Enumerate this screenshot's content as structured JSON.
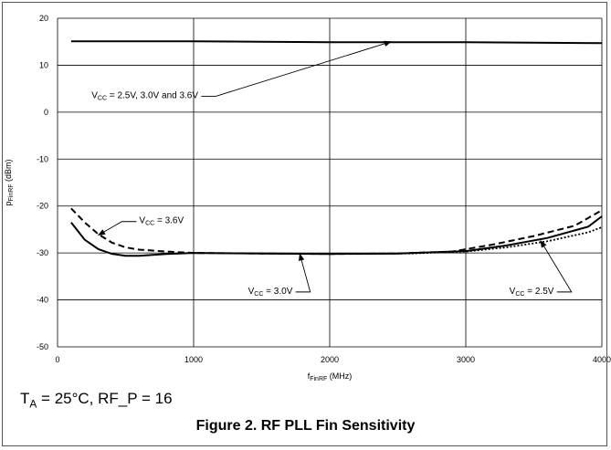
{
  "chart_data": {
    "type": "line",
    "xlabel": {
      "main": "f",
      "sub": "FinRF",
      "unit": " (MHz)"
    },
    "ylabel": {
      "main": "p",
      "sub": "FinRF",
      "unit": " (dBm)"
    },
    "xlim": [
      0,
      4000
    ],
    "ylim": [
      -50,
      20
    ],
    "xticks": [
      0,
      1000,
      2000,
      3000,
      4000
    ],
    "yticks": [
      20,
      10,
      0,
      -10,
      -20,
      -30,
      -40,
      -50
    ],
    "grid": true,
    "legend": "none",
    "series": [
      {
        "style": "solid",
        "values": [
          [
            100,
            15.1
          ],
          [
            500,
            15.1
          ],
          [
            1000,
            15.1
          ],
          [
            1500,
            15.0
          ],
          [
            2000,
            14.9
          ],
          [
            2500,
            14.9
          ],
          [
            3000,
            14.9
          ],
          [
            3500,
            14.8
          ],
          [
            4000,
            14.7
          ]
        ]
      },
      {
        "style": "dashed",
        "values": [
          [
            100,
            -20.5
          ],
          [
            200,
            -23.5
          ],
          [
            300,
            -26.0
          ],
          [
            400,
            -27.8
          ],
          [
            500,
            -28.8
          ],
          [
            600,
            -29.3
          ],
          [
            800,
            -29.7
          ],
          [
            1000,
            -30.0
          ],
          [
            1500,
            -30.1
          ],
          [
            2000,
            -30.2
          ],
          [
            2500,
            -30.1
          ],
          [
            2900,
            -29.7
          ],
          [
            3200,
            -28.2
          ],
          [
            3500,
            -26.4
          ],
          [
            3800,
            -24.2
          ],
          [
            4000,
            -20.9
          ]
        ]
      },
      {
        "style": "solid",
        "values": [
          [
            100,
            -23.5
          ],
          [
            200,
            -27.2
          ],
          [
            300,
            -29.2
          ],
          [
            400,
            -30.2
          ],
          [
            500,
            -30.6
          ],
          [
            600,
            -30.6
          ],
          [
            800,
            -30.2
          ],
          [
            1000,
            -30.0
          ],
          [
            1500,
            -30.1
          ],
          [
            2000,
            -30.2
          ],
          [
            2500,
            -30.1
          ],
          [
            3000,
            -29.6
          ],
          [
            3300,
            -28.4
          ],
          [
            3600,
            -26.8
          ],
          [
            3900,
            -24.4
          ],
          [
            4000,
            -22.2
          ]
        ]
      },
      {
        "style": "dotted",
        "values": [
          [
            2200,
            -30.2
          ],
          [
            2600,
            -30.1
          ],
          [
            3000,
            -29.7
          ],
          [
            3300,
            -28.8
          ],
          [
            3600,
            -27.5
          ],
          [
            3900,
            -25.6
          ],
          [
            4000,
            -24.5
          ]
        ]
      }
    ],
    "annotations": [
      {
        "main": "V",
        "sub": "CC",
        "rest": " = 2.5V, 3.0V and 3.6V",
        "target": [
          2450,
          15.0
        ],
        "pos": [
          250,
          3.0
        ]
      },
      {
        "main": "V",
        "sub": "CC",
        "rest": " = 3.6V",
        "target": [
          300,
          -26.2
        ],
        "pos": [
          600,
          -23.7
        ]
      },
      {
        "main": "V",
        "sub": "CC",
        "rest": " = 3.0V",
        "target": [
          1780,
          -30.2
        ],
        "pos": [
          1400,
          -38.7
        ]
      },
      {
        "main": "V",
        "sub": "CC",
        "rest": " = 2.5V",
        "target": [
          3550,
          -27.4
        ],
        "pos": [
          3320,
          -38.7
        ]
      }
    ]
  },
  "conditions": {
    "t": "T",
    "t_sub": "A",
    "rest": " = 25°C, RF_P = 16"
  },
  "caption": "Figure 2. RF PLL Fin Sensitivity"
}
